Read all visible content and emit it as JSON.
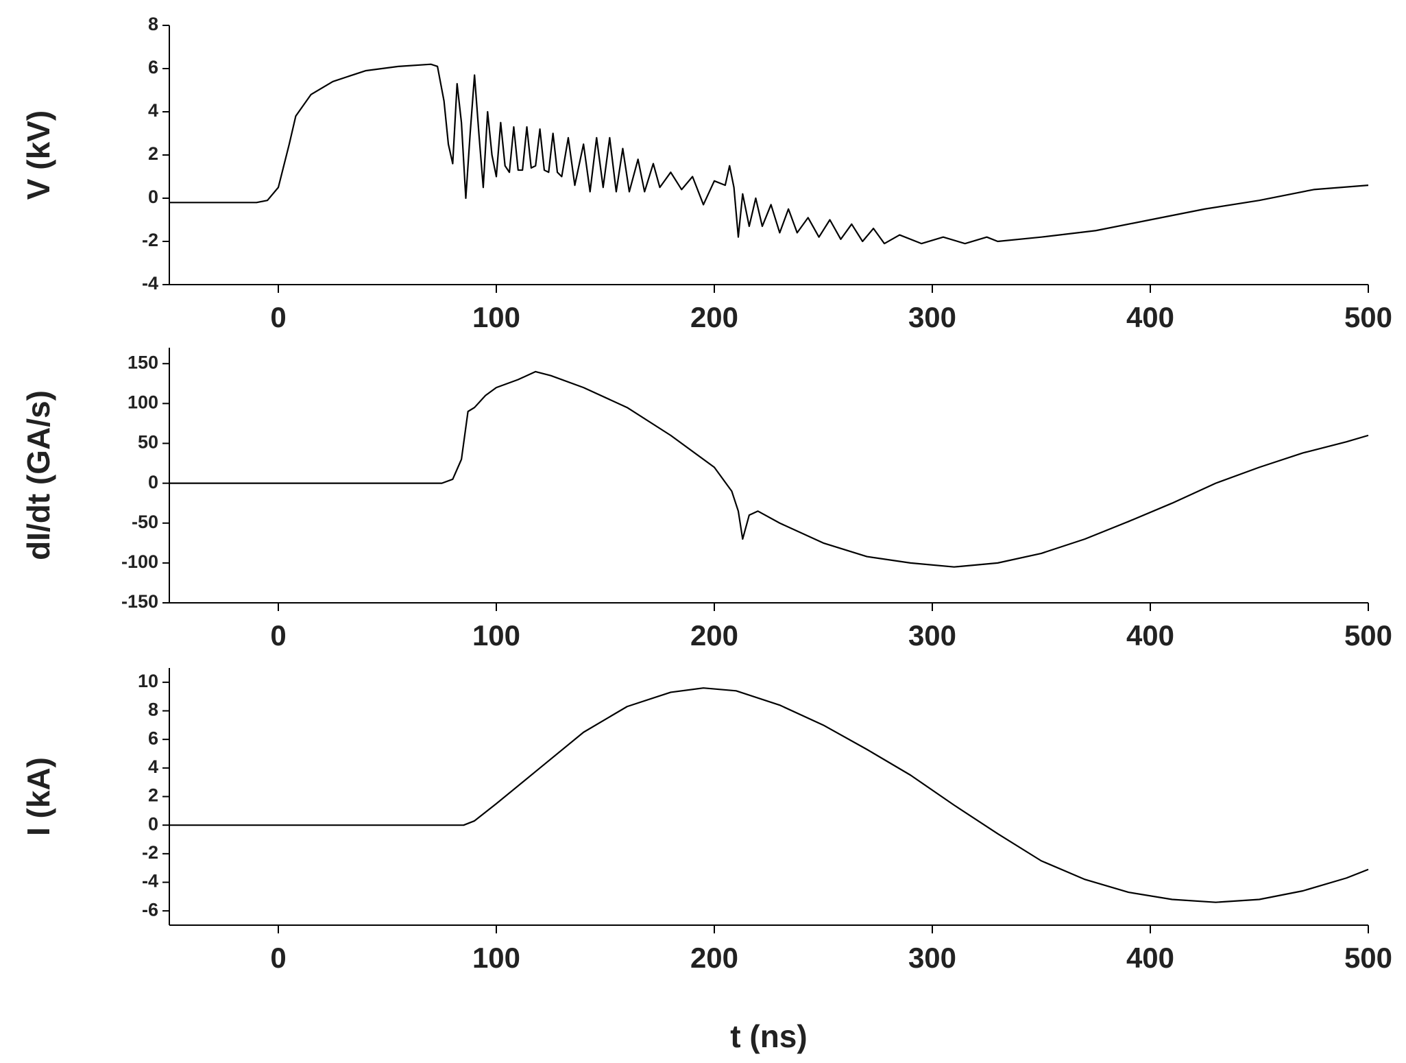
{
  "chart_data": [
    {
      "type": "line",
      "ylabel": "V (kV)",
      "xlim": [
        -50,
        500
      ],
      "xticks": [
        0,
        100,
        200,
        300,
        400,
        500
      ],
      "ylim": [
        -4,
        8
      ],
      "yticks": [
        -4,
        -2,
        0,
        2,
        4,
        6,
        8
      ],
      "color": "#000000",
      "x": [
        -50,
        -10,
        -5,
        0,
        5,
        8,
        15,
        25,
        40,
        55,
        70,
        73,
        76,
        78,
        80,
        82,
        84,
        86,
        88,
        90,
        92,
        94,
        96,
        98,
        100,
        102,
        104,
        106,
        108,
        110,
        112,
        114,
        116,
        118,
        120,
        122,
        124,
        126,
        128,
        130,
        133,
        136,
        140,
        143,
        146,
        149,
        152,
        155,
        158,
        161,
        165,
        168,
        172,
        175,
        180,
        185,
        190,
        195,
        200,
        205,
        207,
        209,
        211,
        213,
        216,
        219,
        222,
        226,
        230,
        234,
        238,
        243,
        248,
        253,
        258,
        263,
        268,
        273,
        278,
        285,
        295,
        305,
        315,
        325,
        330,
        350,
        375,
        400,
        425,
        450,
        475,
        500
      ],
      "values": [
        -0.2,
        -0.2,
        -0.1,
        0.5,
        2.5,
        3.8,
        4.8,
        5.4,
        5.9,
        6.1,
        6.2,
        6.1,
        4.5,
        2.5,
        1.6,
        5.3,
        3.5,
        0.0,
        3.0,
        5.7,
        3.0,
        0.5,
        4.0,
        2.0,
        1.0,
        3.5,
        1.5,
        1.2,
        3.3,
        1.3,
        1.3,
        3.3,
        1.4,
        1.5,
        3.2,
        1.3,
        1.2,
        3.0,
        1.2,
        1.0,
        2.8,
        0.6,
        2.5,
        0.3,
        2.8,
        0.5,
        2.8,
        0.3,
        2.3,
        0.3,
        1.8,
        0.3,
        1.6,
        0.5,
        1.2,
        0.4,
        1.0,
        -0.3,
        0.8,
        0.6,
        1.5,
        0.5,
        -1.8,
        0.2,
        -1.3,
        0.0,
        -1.3,
        -0.3,
        -1.6,
        -0.5,
        -1.6,
        -0.9,
        -1.8,
        -1.0,
        -1.9,
        -1.2,
        -2.0,
        -1.4,
        -2.1,
        -1.7,
        -2.1,
        -1.8,
        -2.1,
        -1.8,
        -2.0,
        -1.8,
        -1.5,
        -1.0,
        -0.5,
        -0.1,
        0.4,
        0.6
      ]
    },
    {
      "type": "line",
      "ylabel": "dI/dt (GA/s)",
      "xlim": [
        -50,
        500
      ],
      "xticks": [
        0,
        100,
        200,
        300,
        400,
        500
      ],
      "ylim": [
        -150,
        170
      ],
      "yticks": [
        -150,
        -100,
        -50,
        0,
        50,
        100,
        150
      ],
      "color": "#000000",
      "x": [
        -50,
        75,
        80,
        84,
        87,
        90,
        95,
        100,
        110,
        118,
        125,
        140,
        160,
        180,
        200,
        208,
        211,
        213,
        216,
        220,
        230,
        250,
        270,
        290,
        310,
        330,
        350,
        370,
        390,
        410,
        430,
        450,
        470,
        490,
        500
      ],
      "values": [
        0,
        0,
        5,
        30,
        90,
        95,
        110,
        120,
        130,
        140,
        135,
        120,
        95,
        60,
        20,
        -10,
        -35,
        -70,
        -40,
        -35,
        -50,
        -75,
        -92,
        -100,
        -105,
        -100,
        -88,
        -70,
        -48,
        -25,
        0,
        20,
        38,
        52,
        60
      ]
    },
    {
      "type": "line",
      "ylabel": "I (kA)",
      "xlabel": "t (ns)",
      "xlim": [
        -50,
        500
      ],
      "xticks": [
        0,
        100,
        200,
        300,
        400,
        500
      ],
      "ylim": [
        -7,
        11
      ],
      "yticks": [
        -6,
        -4,
        -2,
        0,
        2,
        4,
        6,
        8,
        10
      ],
      "color": "#000000",
      "x": [
        -50,
        85,
        90,
        100,
        120,
        140,
        160,
        180,
        195,
        210,
        230,
        250,
        270,
        290,
        310,
        330,
        350,
        370,
        390,
        410,
        430,
        450,
        470,
        490,
        500
      ],
      "values": [
        0,
        0,
        0.3,
        1.5,
        4.0,
        6.5,
        8.3,
        9.3,
        9.6,
        9.4,
        8.4,
        7.0,
        5.3,
        3.5,
        1.4,
        -0.6,
        -2.5,
        -3.8,
        -4.7,
        -5.2,
        -5.4,
        -5.2,
        -4.6,
        -3.7,
        -3.1
      ]
    }
  ]
}
